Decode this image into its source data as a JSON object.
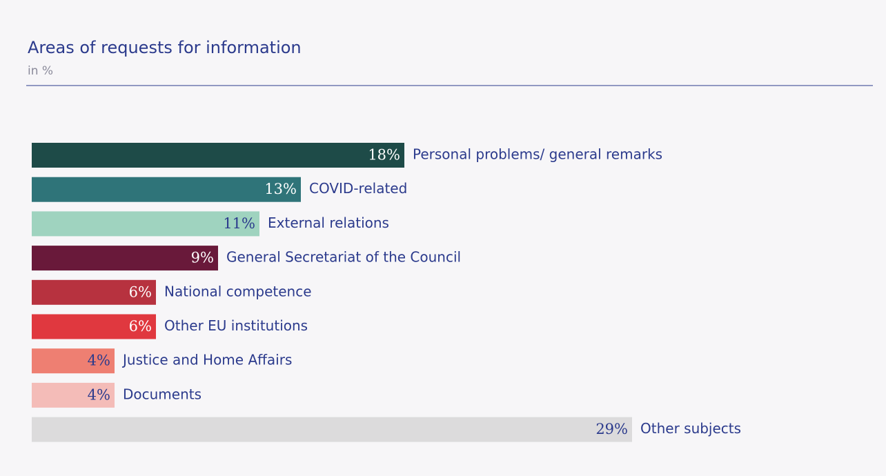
{
  "chart_data": {
    "type": "bar",
    "orientation": "horizontal",
    "title": "Areas of requests for information",
    "subtitle": "in %",
    "categories": [
      "Personal problems/ general remarks",
      "COVID-related",
      "External relations",
      "General Secretariat of the Council",
      "National competence",
      "Other EU institutions",
      "Justice and Home Affairs",
      "Documents",
      "Other subjects"
    ],
    "values": [
      18,
      13,
      11,
      9,
      6,
      6,
      4,
      4,
      29
    ],
    "value_labels": [
      "18%",
      "13%",
      "11%",
      "9%",
      "6%",
      "6%",
      "4%",
      "4%",
      "29%"
    ],
    "colors": [
      "#1e4b48",
      "#2f7479",
      "#9fd3bf",
      "#69193a",
      "#b7323f",
      "#e0383f",
      "#ee7f72",
      "#f4bcb8",
      "#dcdbdc"
    ],
    "label_colors": [
      "#ffffff",
      "#ffffff",
      "#2b3a8c",
      "#ffffff",
      "#ffffff",
      "#ffffff",
      "#2b3a8c",
      "#2b3a8c",
      "#2b3a8c"
    ]
  }
}
